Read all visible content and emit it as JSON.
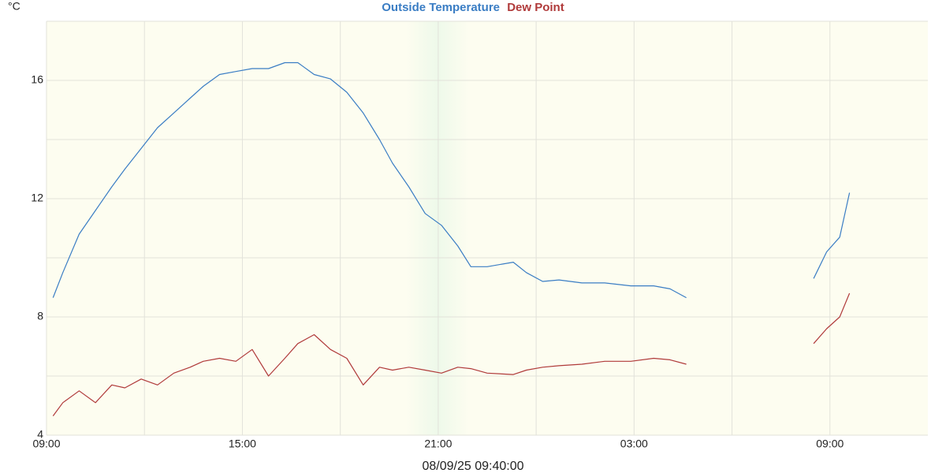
{
  "chart_data": {
    "type": "line",
    "ylabel": "°C",
    "xlabel": "08/09/25 09:40:00",
    "x": [
      9.2,
      9.5,
      10.0,
      10.5,
      11.0,
      11.4,
      11.9,
      12.4,
      12.9,
      13.4,
      13.8,
      14.3,
      14.8,
      15.3,
      15.8,
      16.3,
      16.7,
      17.2,
      17.7,
      18.2,
      18.7,
      19.2,
      19.6,
      20.1,
      20.6,
      21.1,
      21.6,
      22.0,
      22.5,
      23.3,
      23.7,
      24.2,
      24.7,
      25.4,
      26.1,
      26.9,
      27.6,
      28.1,
      28.6,
      30.5,
      32.5,
      32.9,
      33.3,
      33.6
    ],
    "series": [
      {
        "name": "Outside Temperature",
        "color": "#3a7dc4",
        "values": [
          8.65,
          9.5,
          10.8,
          11.6,
          12.4,
          13.0,
          13.7,
          14.4,
          14.9,
          15.4,
          15.8,
          16.2,
          16.3,
          16.4,
          16.4,
          16.6,
          16.6,
          16.2,
          16.05,
          15.6,
          14.9,
          14.0,
          13.2,
          12.4,
          11.5,
          11.1,
          10.4,
          9.7,
          9.7,
          9.85,
          9.5,
          9.2,
          9.25,
          9.15,
          9.15,
          9.05,
          9.05,
          8.95,
          8.65,
          null,
          9.3,
          10.2,
          10.7,
          12.2
        ]
      },
      {
        "name": "Dew Point",
        "color": "#b03a3a",
        "values": [
          4.65,
          5.1,
          5.5,
          5.1,
          5.7,
          5.6,
          5.9,
          5.7,
          6.1,
          6.3,
          6.5,
          6.6,
          6.5,
          6.9,
          6.0,
          6.6,
          7.1,
          7.4,
          6.9,
          6.6,
          5.7,
          6.3,
          6.2,
          6.3,
          6.2,
          6.1,
          6.3,
          6.25,
          6.1,
          6.05,
          6.2,
          6.3,
          6.35,
          6.4,
          6.5,
          6.5,
          6.6,
          6.55,
          6.4,
          null,
          7.1,
          7.6,
          8.0,
          8.8
        ]
      }
    ],
    "xlim": [
      9,
      36
    ],
    "xticks": [
      {
        "value": 9,
        "label": "09:00"
      },
      {
        "value": 15,
        "label": "15:00"
      },
      {
        "value": 21,
        "label": "21:00"
      },
      {
        "value": 27,
        "label": "03:00"
      },
      {
        "value": 33,
        "label": "09:00"
      }
    ],
    "xgrid": [
      12,
      18,
      24,
      30
    ],
    "ylim": [
      4,
      18
    ],
    "yticks": [
      4,
      8,
      12,
      16
    ],
    "ygrid": [
      6,
      10,
      14,
      18
    ],
    "grid": true
  }
}
